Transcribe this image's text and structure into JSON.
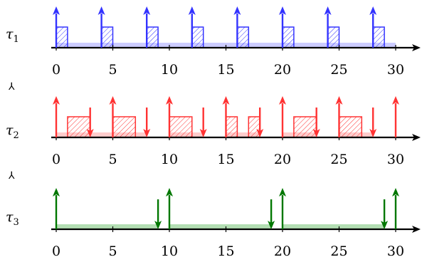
{
  "axis": {
    "ticks": [
      0,
      5,
      10,
      15,
      20,
      25,
      30
    ],
    "tick_labels": [
      "0",
      "5",
      "10",
      "15",
      "20",
      "25",
      "30"
    ],
    "xlim": [
      0,
      30.6
    ]
  },
  "separator_glyph": "⅄",
  "tasks": [
    {
      "label_base": "τ",
      "label_sub": "1",
      "color": "#3333ff",
      "band_color": "#ccccff",
      "releases": [
        0,
        4,
        8,
        12,
        16,
        20,
        24,
        28
      ],
      "deadlines": [],
      "band": [
        0,
        30
      ],
      "jobs": [
        [
          0,
          1
        ],
        [
          4,
          5
        ],
        [
          8,
          9
        ],
        [
          12,
          13
        ],
        [
          16,
          17
        ],
        [
          20,
          21
        ],
        [
          24,
          25
        ],
        [
          28,
          29
        ]
      ]
    },
    {
      "label_base": "τ",
      "label_sub": "2",
      "color": "#ff3333",
      "band_color": "#ffcccc",
      "releases": [
        0,
        5,
        10,
        15,
        20,
        25,
        30
      ],
      "deadlines": [
        3,
        8,
        13,
        18,
        23,
        28
      ],
      "band": [
        0,
        8,
        10,
        13,
        15,
        18,
        20,
        23,
        25,
        28
      ],
      "jobs": [
        [
          1,
          3
        ],
        [
          5,
          7
        ],
        [
          10,
          12
        ],
        [
          15,
          16
        ],
        [
          17,
          18
        ],
        [
          21,
          23
        ],
        [
          25,
          27
        ]
      ]
    },
    {
      "label_base": "τ",
      "label_sub": "3",
      "color": "#007700",
      "band_color": "#b3deb3",
      "releases": [
        0,
        10,
        20,
        30
      ],
      "deadlines": [
        9,
        19,
        29
      ],
      "band": [
        0,
        9,
        10,
        19,
        20,
        29
      ],
      "jobs": []
    }
  ]
}
